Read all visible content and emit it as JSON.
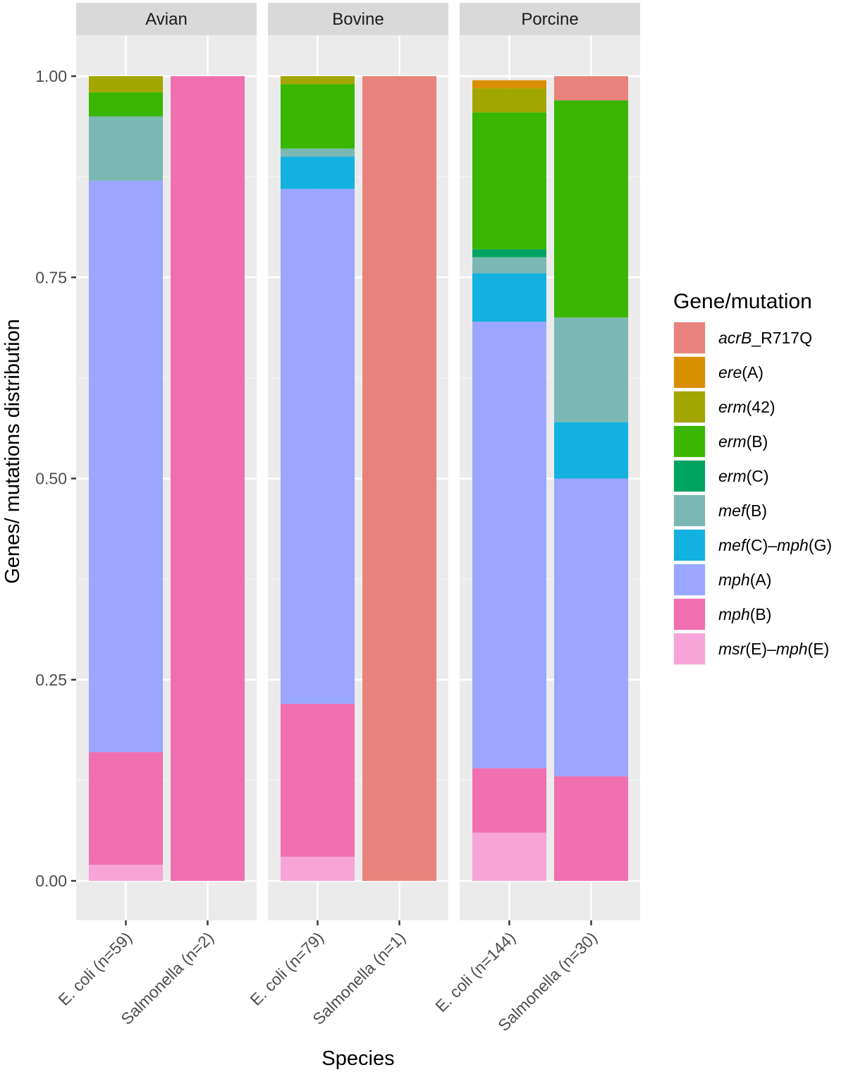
{
  "chart_data": {
    "type": "bar",
    "stacked": true,
    "facets": [
      "Avian",
      "Bovine",
      "Porcine"
    ],
    "xlabel": "Species",
    "ylabel": "Genes/ mutations distribution",
    "ylim": [
      0,
      1
    ],
    "yticks": [
      "0.00",
      "0.25",
      "0.50",
      "0.75",
      "1.00"
    ],
    "grid": true,
    "legend_position": "right",
    "legend_title": "Gene/mutation",
    "legend": [
      {
        "key": "acrB_R717Q",
        "parts": [
          {
            "t": "acrB",
            "i": true
          },
          {
            "t": "_R717Q",
            "i": false
          }
        ],
        "color": "#E8827C"
      },
      {
        "key": "ere(A)",
        "parts": [
          {
            "t": "ere",
            "i": true
          },
          {
            "t": "(A)",
            "i": false
          }
        ],
        "color": "#D89000"
      },
      {
        "key": "erm(42)",
        "parts": [
          {
            "t": "erm",
            "i": true
          },
          {
            "t": "(42)",
            "i": false
          }
        ],
        "color": "#A3A500"
      },
      {
        "key": "erm(B)",
        "parts": [
          {
            "t": "erm",
            "i": true
          },
          {
            "t": "(B)",
            "i": false
          }
        ],
        "color": "#39B600"
      },
      {
        "key": "erm(C)",
        "parts": [
          {
            "t": "erm",
            "i": true
          },
          {
            "t": "(C)",
            "i": false
          }
        ],
        "color": "#00A462"
      },
      {
        "key": "mef(B)",
        "parts": [
          {
            "t": "mef",
            "i": true
          },
          {
            "t": "(B)",
            "i": false
          }
        ],
        "color": "#7BB8B4"
      },
      {
        "key": "mef(C)-mph(G)",
        "parts": [
          {
            "t": "mef",
            "i": true
          },
          {
            "t": "(C)–",
            "i": false
          },
          {
            "t": "mph",
            "i": true
          },
          {
            "t": "(G)",
            "i": false
          }
        ],
        "color": "#12B1E0"
      },
      {
        "key": "mph(A)",
        "parts": [
          {
            "t": "mph",
            "i": true
          },
          {
            "t": "(A)",
            "i": false
          }
        ],
        "color": "#9AA6FF"
      },
      {
        "key": "mph(B)",
        "parts": [
          {
            "t": "mph",
            "i": true
          },
          {
            "t": "(B)",
            "i": false
          }
        ],
        "color": "#F06FAE"
      },
      {
        "key": "msr(E)-mph(E)",
        "parts": [
          {
            "t": "msr",
            "i": true
          },
          {
            "t": "(E)–",
            "i": false
          },
          {
            "t": "mph",
            "i": true
          },
          {
            "t": "(E)",
            "i": false
          }
        ],
        "color": "#F7A5D8"
      }
    ],
    "bars": [
      {
        "facet": "Avian",
        "category": "E. coli (n=59)",
        "segments": [
          {
            "gene": "msr(E)-mph(E)",
            "value": 0.02
          },
          {
            "gene": "mph(B)",
            "value": 0.14
          },
          {
            "gene": "mph(A)",
            "value": 0.71
          },
          {
            "gene": "mef(B)",
            "value": 0.08
          },
          {
            "gene": "erm(B)",
            "value": 0.03
          },
          {
            "gene": "erm(42)",
            "value": 0.02
          }
        ]
      },
      {
        "facet": "Avian",
        "category": "Salmonella (n=2)",
        "segments": [
          {
            "gene": "mph(B)",
            "value": 1.0
          }
        ]
      },
      {
        "facet": "Bovine",
        "category": "E. coli (n=79)",
        "segments": [
          {
            "gene": "msr(E)-mph(E)",
            "value": 0.03
          },
          {
            "gene": "mph(B)",
            "value": 0.19
          },
          {
            "gene": "mph(A)",
            "value": 0.64
          },
          {
            "gene": "mef(C)-mph(G)",
            "value": 0.04
          },
          {
            "gene": "mef(B)",
            "value": 0.01
          },
          {
            "gene": "erm(B)",
            "value": 0.08
          },
          {
            "gene": "erm(42)",
            "value": 0.01
          }
        ]
      },
      {
        "facet": "Bovine",
        "category": "Salmonella (n=1)",
        "segments": [
          {
            "gene": "acrB_R717Q",
            "value": 1.0
          }
        ]
      },
      {
        "facet": "Porcine",
        "category": "E. coli (n=144)",
        "segments": [
          {
            "gene": "msr(E)-mph(E)",
            "value": 0.06
          },
          {
            "gene": "mph(B)",
            "value": 0.08
          },
          {
            "gene": "mph(A)",
            "value": 0.555
          },
          {
            "gene": "mef(C)-mph(G)",
            "value": 0.06
          },
          {
            "gene": "mef(B)",
            "value": 0.02
          },
          {
            "gene": "erm(C)",
            "value": 0.01
          },
          {
            "gene": "erm(B)",
            "value": 0.17
          },
          {
            "gene": "erm(42)",
            "value": 0.03
          },
          {
            "gene": "ere(A)",
            "value": 0.01
          }
        ]
      },
      {
        "facet": "Porcine",
        "category": "Salmonella (n=30)",
        "segments": [
          {
            "gene": "mph(B)",
            "value": 0.13
          },
          {
            "gene": "mph(A)",
            "value": 0.37
          },
          {
            "gene": "mef(C)-mph(G)",
            "value": 0.07
          },
          {
            "gene": "mef(B)",
            "value": 0.13
          },
          {
            "gene": "erm(B)",
            "value": 0.27
          },
          {
            "gene": "acrB_R717Q",
            "value": 0.03
          }
        ]
      }
    ]
  }
}
